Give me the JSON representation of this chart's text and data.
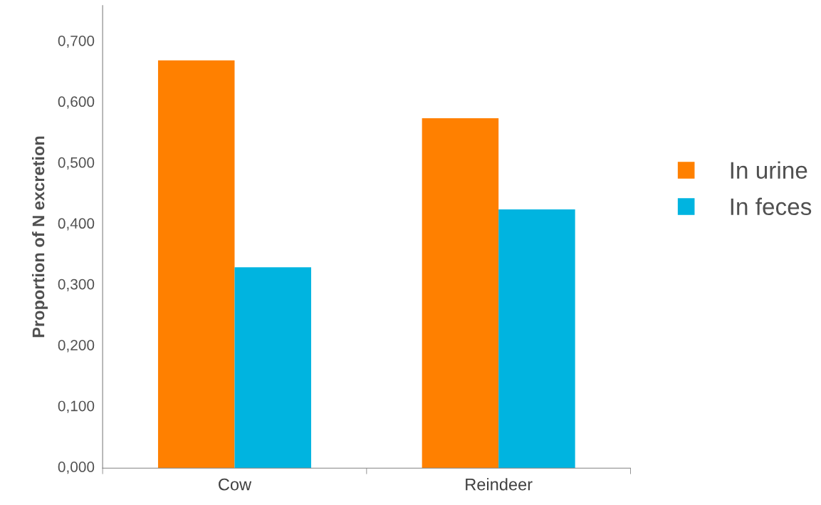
{
  "chart_data": {
    "type": "bar",
    "ylabel": "Proportion of N excretion",
    "categories": [
      "Cow",
      "Reindeer"
    ],
    "series": [
      {
        "name": "In urine",
        "color": "#ff8000",
        "values": [
          0.67,
          0.575
        ]
      },
      {
        "name": "In feces",
        "color": "#00b4e0",
        "values": [
          0.33,
          0.425
        ]
      }
    ],
    "ylim": [
      0,
      0.76
    ],
    "yticks": [
      {
        "value": 0,
        "label": "0,000"
      },
      {
        "value": 0.1,
        "label": "0,100"
      },
      {
        "value": 0.2,
        "label": "0,200"
      },
      {
        "value": 0.3,
        "label": "0,300"
      },
      {
        "value": 0.4,
        "label": "0,400"
      },
      {
        "value": 0.5,
        "label": "0,500"
      },
      {
        "value": 0.6,
        "label": "0,600"
      },
      {
        "value": 0.7,
        "label": "0,700"
      }
    ],
    "grid": false,
    "legend": "right",
    "marker": "square"
  }
}
